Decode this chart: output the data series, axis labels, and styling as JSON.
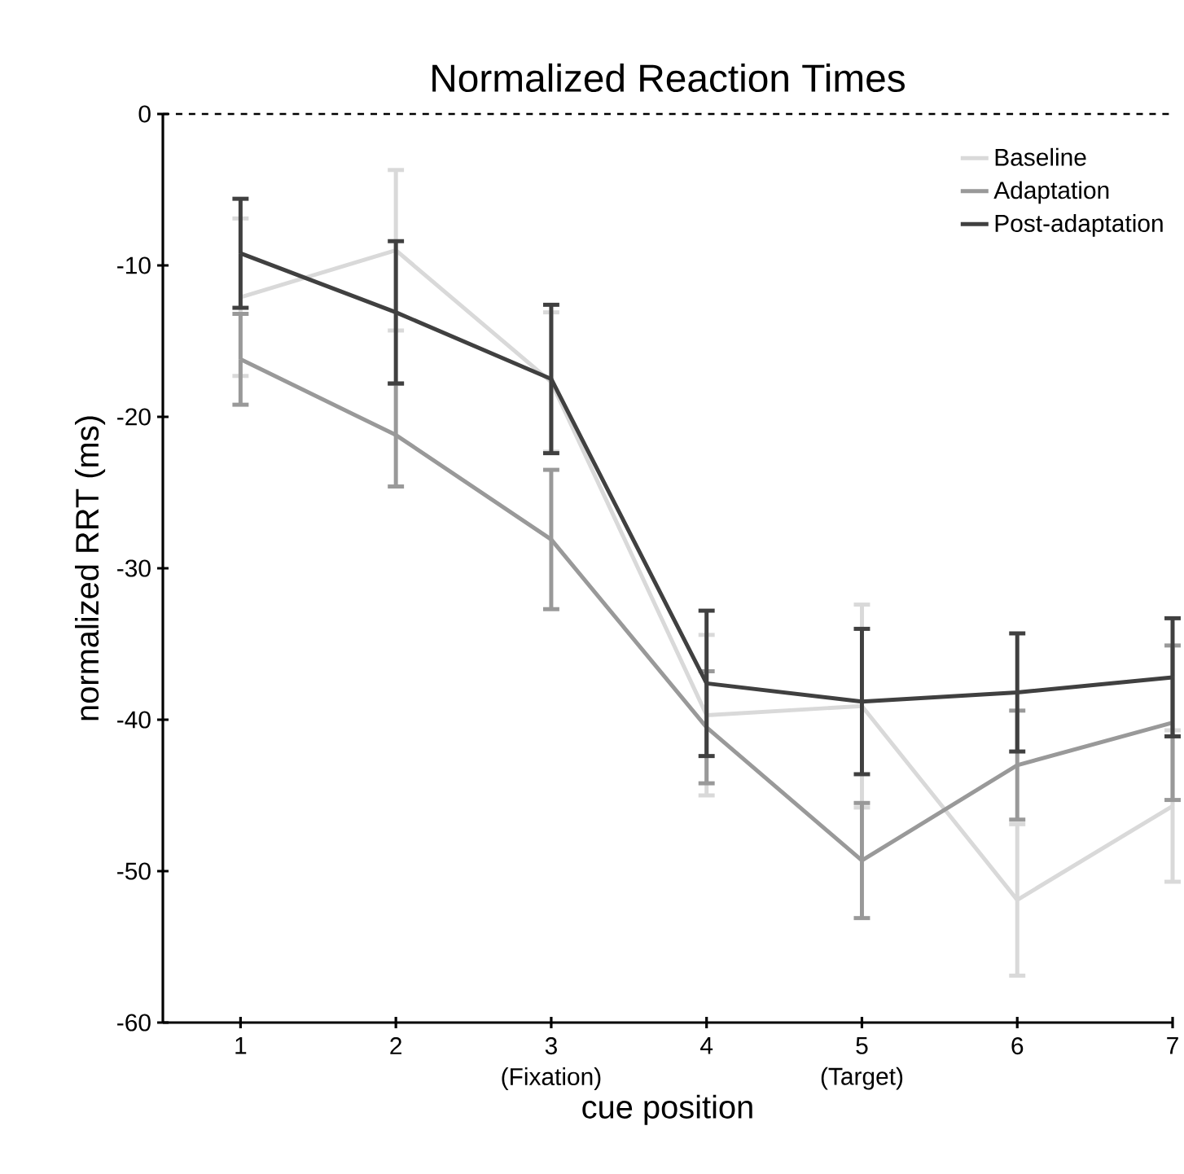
{
  "chart_data": {
    "type": "line",
    "title": "Normalized Reaction Times",
    "xlabel": "cue position",
    "ylabel": "normalized RRT (ms)",
    "x": [
      1,
      2,
      3,
      4,
      5,
      6,
      7
    ],
    "xlim": [
      0.5,
      7
    ],
    "xticks": [
      1,
      2,
      {
        "value": 3,
        "label": "3 (Fixation)"
      },
      4,
      {
        "value": 5,
        "label": "5 (Target)"
      },
      6,
      7
    ],
    "ylim": [
      -60,
      0
    ],
    "yticks": [
      -60,
      -50,
      -40,
      -30,
      -20,
      -10,
      0
    ],
    "series": [
      {
        "name": "Baseline",
        "color": "#d9d9d9",
        "values": [
          -12.1,
          -9.0,
          -17.7,
          -39.7,
          -39.1,
          -51.9,
          -45.7
        ],
        "errors": [
          5.2,
          5.3,
          4.6,
          5.3,
          6.7,
          5.0,
          5.0
        ]
      },
      {
        "name": "Adaptation",
        "color": "#999999",
        "values": [
          -16.2,
          -21.2,
          -28.1,
          -40.5,
          -49.3,
          -43.0,
          -40.2
        ],
        "errors": [
          3.0,
          3.4,
          4.6,
          3.7,
          3.8,
          3.6,
          5.1
        ]
      },
      {
        "name": "Post-adaptation",
        "color": "#404040",
        "values": [
          -9.2,
          -13.1,
          -17.5,
          -37.6,
          -38.8,
          -38.2,
          -37.2
        ],
        "errors": [
          3.6,
          4.7,
          4.9,
          4.8,
          4.8,
          3.9,
          3.9
        ]
      }
    ],
    "ref_lines": [
      {
        "axis": "y",
        "value": 0,
        "color": "#000000",
        "line_style": "dashed"
      }
    ],
    "legend": "top right",
    "grid": false,
    "marker": "none",
    "line_style": "solid"
  }
}
